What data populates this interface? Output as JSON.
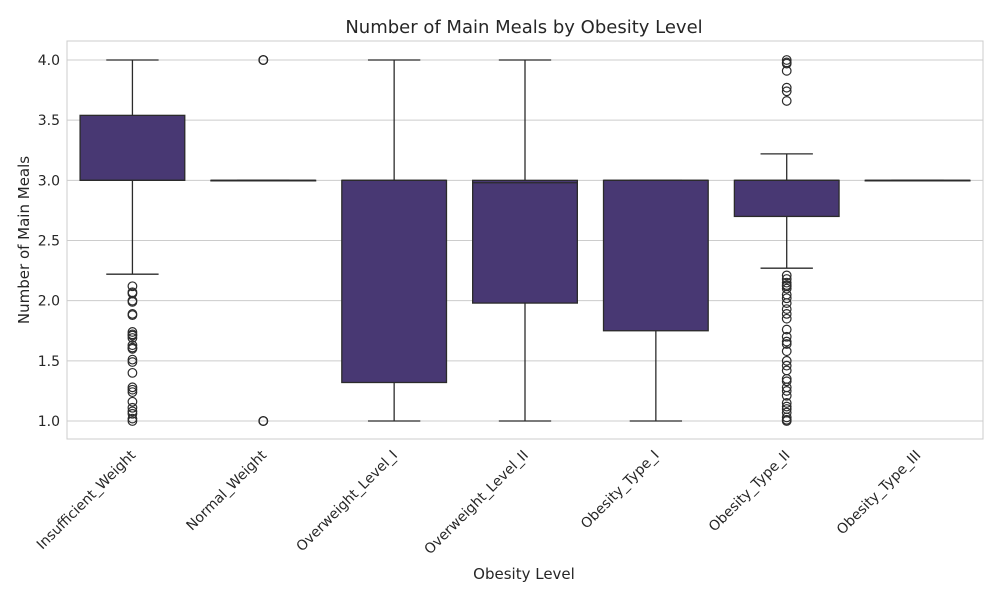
{
  "chart_data": {
    "type": "box",
    "title": "Number of Main Meals by Obesity Level",
    "xlabel": "Obesity Level",
    "ylabel": "Number of Main Meals",
    "ylim": [
      0.85,
      4.15
    ],
    "yticks": [
      1.0,
      1.5,
      2.0,
      2.5,
      3.0,
      3.5,
      4.0
    ],
    "ytick_labels": [
      "1.0",
      "1.5",
      "2.0",
      "2.5",
      "3.0",
      "3.5",
      "4.0"
    ],
    "grid": true,
    "box_color": "#483873",
    "line_color": "#2b2b2b",
    "categories": [
      "Insufficient_Weight",
      "Normal_Weight",
      "Overweight_Level_I",
      "Overweight_Level_II",
      "Obesity_Type_I",
      "Obesity_Type_II",
      "Obesity_Type_III"
    ],
    "boxes": [
      {
        "category": "Insufficient_Weight",
        "whisker_low": 2.22,
        "q1": 3.0,
        "median": 3.0,
        "q3": 3.54,
        "whisker_high": 4.0,
        "outliers": [
          2.12,
          2.07,
          2.06,
          2.0,
          1.99,
          1.89,
          1.88,
          1.74,
          1.72,
          1.71,
          1.69,
          1.63,
          1.61,
          1.6,
          1.51,
          1.49,
          1.4,
          1.28,
          1.26,
          1.24,
          1.16,
          1.11,
          1.08,
          1.06,
          1.02,
          1.0
        ]
      },
      {
        "category": "Normal_Weight",
        "whisker_low": 3.0,
        "q1": 3.0,
        "median": 3.0,
        "q3": 3.0,
        "whisker_high": 3.0,
        "outliers": [
          4.0,
          4.0,
          4.0,
          1.0,
          1.0,
          1.0
        ]
      },
      {
        "category": "Overweight_Level_I",
        "whisker_low": 1.0,
        "q1": 1.32,
        "median": 3.0,
        "q3": 3.0,
        "whisker_high": 4.0,
        "outliers": []
      },
      {
        "category": "Overweight_Level_II",
        "whisker_low": 1.0,
        "q1": 1.98,
        "median": 2.98,
        "q3": 3.0,
        "whisker_high": 4.0,
        "outliers": []
      },
      {
        "category": "Obesity_Type_I",
        "whisker_low": 1.0,
        "q1": 1.75,
        "median": 3.0,
        "q3": 3.0,
        "whisker_high": 3.0,
        "outliers": []
      },
      {
        "category": "Obesity_Type_II",
        "whisker_low": 2.27,
        "q1": 2.7,
        "median": 3.0,
        "q3": 3.0,
        "whisker_high": 3.22,
        "outliers": [
          4.0,
          3.98,
          3.97,
          3.91,
          3.77,
          3.74,
          3.66,
          2.21,
          2.18,
          2.15,
          2.13,
          2.12,
          2.1,
          2.05,
          2.02,
          1.98,
          1.93,
          1.89,
          1.85,
          1.76,
          1.7,
          1.66,
          1.64,
          1.58,
          1.5,
          1.46,
          1.42,
          1.35,
          1.33,
          1.28,
          1.25,
          1.21,
          1.15,
          1.12,
          1.1,
          1.07,
          1.03,
          1.01,
          1.0
        ]
      },
      {
        "category": "Obesity_Type_III",
        "whisker_low": 3.0,
        "q1": 3.0,
        "median": 3.0,
        "q3": 3.0,
        "whisker_high": 3.0,
        "outliers": []
      }
    ]
  }
}
